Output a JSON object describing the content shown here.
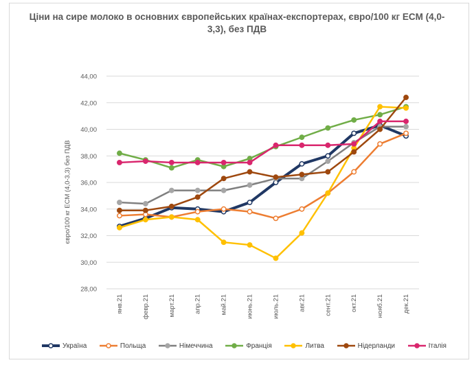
{
  "chart_data": {
    "type": "line",
    "title": "Ціни на сире молоко в основних європейських країнах-експортерах, євро/100 кг ECM (4,0-3,3), без ПДВ",
    "ylabel": "євро/100 кг ECM (4,0-3,3) без ПДВ",
    "xlabel": "",
    "categories": [
      "янв.21",
      "февр.21",
      "март.21",
      "апр.21",
      "май.21",
      "июнь.21",
      "июль.21",
      "авг.21",
      "сент.21",
      "окт.21",
      "нояб.21",
      "дек.21"
    ],
    "yticks": [
      "28,00",
      "30,00",
      "32,00",
      "34,00",
      "36,00",
      "38,00",
      "40,00",
      "42,00",
      "44,00"
    ],
    "ylim": [
      28,
      44
    ],
    "grid": true,
    "legend_position": "bottom",
    "series": [
      {
        "name": "Україна",
        "color": "#203864",
        "width": 4,
        "marker": "hollow",
        "values": [
          32.7,
          33.3,
          34.1,
          34.0,
          33.8,
          34.5,
          36.0,
          37.4,
          38.0,
          39.7,
          40.3,
          39.5
        ]
      },
      {
        "name": "Польща",
        "color": "#ed7d31",
        "width": 2.5,
        "marker": "hollow",
        "values": [
          33.5,
          33.6,
          33.4,
          33.8,
          34.0,
          33.8,
          33.3,
          34.0,
          35.2,
          36.8,
          38.9,
          39.7
        ]
      },
      {
        "name": "Німеччина",
        "color": "#7f7f7f",
        "width": 2.5,
        "marker": "filled-gray",
        "values": [
          34.5,
          34.4,
          35.4,
          35.4,
          35.4,
          35.8,
          36.3,
          36.3,
          37.6,
          39.0,
          40.2,
          40.2
        ]
      },
      {
        "name": "Франція",
        "color": "#70ad47",
        "width": 2.5,
        "marker": "filled",
        "values": [
          38.2,
          37.7,
          37.1,
          37.7,
          37.2,
          37.8,
          38.7,
          39.4,
          40.1,
          40.7,
          41.1,
          41.7
        ]
      },
      {
        "name": "Литва",
        "color": "#ffc000",
        "width": 2.5,
        "marker": "filled",
        "values": [
          32.6,
          33.2,
          33.4,
          33.2,
          31.5,
          31.3,
          30.3,
          32.2,
          35.2,
          38.6,
          41.7,
          41.6
        ]
      },
      {
        "name": "Нідерланди",
        "color": "#9e480e",
        "width": 2.5,
        "marker": "filled",
        "values": [
          33.9,
          33.9,
          34.2,
          34.9,
          36.3,
          36.8,
          36.4,
          36.6,
          36.8,
          38.3,
          40.0,
          42.4
        ]
      },
      {
        "name": "Італія",
        "color": "#d9266d",
        "width": 2.5,
        "marker": "filled",
        "values": [
          37.5,
          37.6,
          37.5,
          37.5,
          37.5,
          37.5,
          38.8,
          38.8,
          38.8,
          38.9,
          40.6,
          40.6
        ]
      }
    ]
  }
}
